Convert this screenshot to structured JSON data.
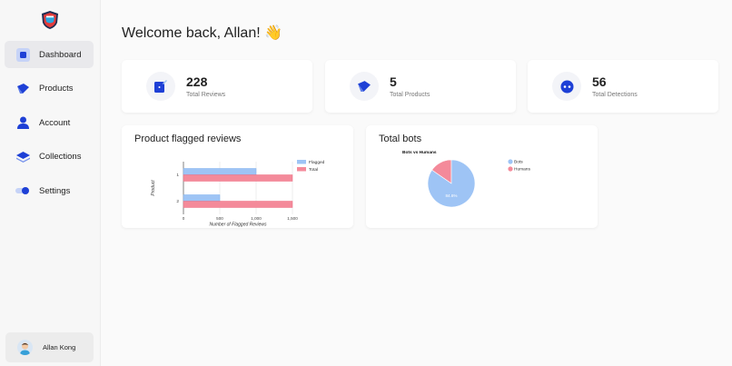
{
  "sidebar": {
    "items": [
      {
        "label": "Dashboard",
        "icon": "dashboard-icon"
      },
      {
        "label": "Products",
        "icon": "products-icon"
      },
      {
        "label": "Account",
        "icon": "account-icon"
      },
      {
        "label": "Collections",
        "icon": "collections-icon"
      },
      {
        "label": "Settings",
        "icon": "settings-icon"
      }
    ],
    "active": "Dashboard"
  },
  "user": {
    "name": "Allan Kong"
  },
  "header": {
    "welcome": "Welcome back, Allan! 👋"
  },
  "stats": [
    {
      "value": "228",
      "label": "Total Reviews",
      "icon": "reviews-icon"
    },
    {
      "value": "5",
      "label": "Total Products",
      "icon": "products-icon"
    },
    {
      "value": "56",
      "label": "Total Detections",
      "icon": "bot-icon"
    }
  ],
  "panels": {
    "flagged_title": "Product flagged reviews",
    "bots_title": "Total bots"
  },
  "colors": {
    "accent": "#1e40d6",
    "flagged": "#9ec4f5",
    "total": "#f48a9a",
    "bots": "#9ec4f5",
    "humans": "#f48a9a"
  },
  "chart_data": [
    {
      "type": "bar",
      "orientation": "horizontal",
      "categories": [
        "1",
        "2"
      ],
      "series": [
        {
          "name": "Flagged",
          "values": [
            1000,
            500
          ]
        },
        {
          "name": "Total",
          "values": [
            1500,
            1500
          ]
        }
      ],
      "xlabel": "Number of Flagged Reviews",
      "ylabel": "Product",
      "xticks": [
        "0",
        "500",
        "1,000",
        "1,500"
      ],
      "xlim": [
        0,
        1500
      ],
      "grid": true,
      "legend": "right"
    },
    {
      "type": "pie",
      "title": "Bots vs Humans",
      "labels": [
        "Bots",
        "Humans"
      ],
      "values": [
        84.6,
        15.4
      ],
      "data_label": "84.6%",
      "legend": "right"
    }
  ]
}
